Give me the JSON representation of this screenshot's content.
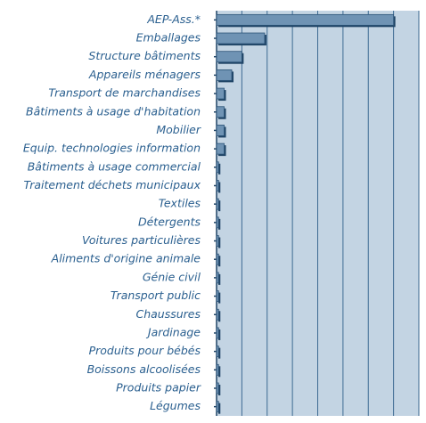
{
  "chart_data": {
    "type": "barh",
    "categories": [
      "AEP-Ass.*",
      "Emballages",
      "Structure bâtiments",
      "Appareils ménagers",
      "Transport de marchandises",
      "Bâtiments à usage d'habitation",
      "Mobilier",
      "Equip. technologies information",
      "Bâtiments à usage commercial",
      "Traitement déchets municipaux",
      "Textiles",
      "Détergents",
      "Voitures particulières",
      "Aliments d'origine animale",
      "Génie civil",
      "Transport public",
      "Chaussures",
      "Jardinage",
      "Produits pour bébés",
      "Boissons alcoolisées",
      "Produits papier",
      "Légumes"
    ],
    "values": [
      7,
      1.9,
      1.0,
      0.6,
      0.3,
      0.3,
      0.3,
      0.3,
      0.08,
      0.08,
      0.08,
      0.08,
      0.08,
      0.08,
      0.08,
      0.08,
      0.08,
      0.08,
      0.08,
      0.08,
      0.08,
      0.08
    ],
    "color": "#6f93b4",
    "xlim": [
      0,
      8
    ],
    "xticks": [
      0,
      1,
      2,
      3,
      4,
      5,
      6,
      7,
      8
    ],
    "grid": true
  }
}
